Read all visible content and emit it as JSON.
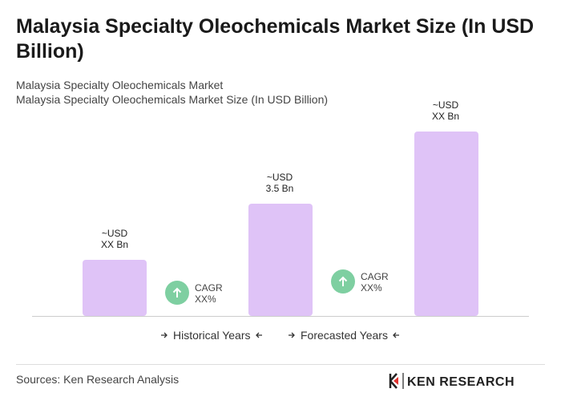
{
  "header": {
    "title": "Malaysia Specialty Oleochemicals Market Size (In USD Billion)",
    "subtitle": "Malaysia Specialty Oleochemicals Market",
    "subtitle2": "Malaysia Specialty Oleochemicals Market Size (In USD Billion)"
  },
  "bars": [
    {
      "label_top": "~USD",
      "label_bottom": "XX Bn"
    },
    {
      "label_top": "~USD",
      "label_bottom": "3.5 Bn"
    },
    {
      "label_top": "~USD",
      "label_bottom": "XX Bn"
    }
  ],
  "cagr": [
    {
      "label": "CAGR",
      "value": "XX%"
    },
    {
      "label": "CAGR",
      "value": "XX%"
    }
  ],
  "legend": [
    "Historical Years",
    "Forecasted Years"
  ],
  "footer": {
    "source": "Sources: Ken Research Analysis",
    "logo": "KEN RESEARCH"
  }
}
